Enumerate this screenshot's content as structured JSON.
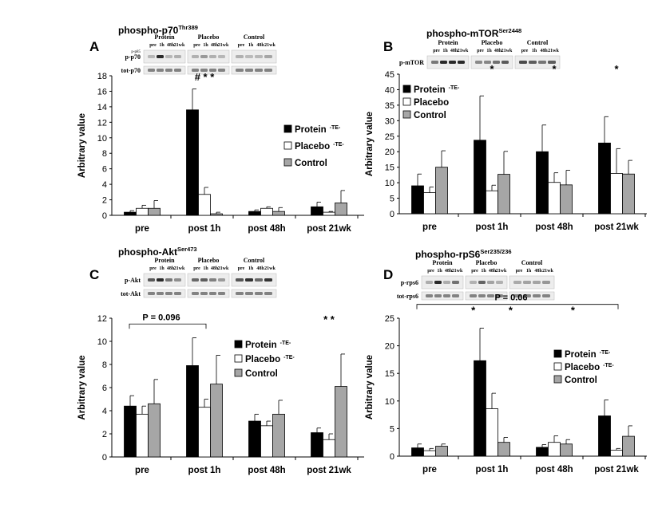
{
  "colors": {
    "protein": "#000000",
    "placebo": "#ffffff",
    "control": "#a6a6a6",
    "blot_bg": "#ededed",
    "blot_band": "#2a2a2a"
  },
  "legend_names": [
    "Protein",
    "Placebo",
    "Control"
  ],
  "categories": [
    "pre",
    "post 1h",
    "post 48h",
    "post 21wk"
  ],
  "y_axis_label": "Arbitrary value",
  "chart_data": [
    {
      "type": "bar",
      "letter": "A",
      "title": "phospho-p70",
      "title_sup": "Thr389",
      "ylabel": "Arbitrary value",
      "ylim": [
        0,
        18
      ],
      "yticks": [
        0,
        2,
        4,
        6,
        8,
        10,
        12,
        14,
        16,
        18
      ],
      "categories": [
        "pre",
        "post 1h",
        "post 48h",
        "post 21wk"
      ],
      "series": [
        {
          "name": "Protein",
          "sup": "-TE-",
          "values": [
            0.4,
            13.6,
            0.5,
            1.1
          ],
          "errors": [
            0.2,
            2.7,
            0.2,
            0.6
          ]
        },
        {
          "name": "Placebo",
          "sup": "-TE-",
          "values": [
            0.9,
            2.7,
            0.9,
            0.4
          ],
          "errors": [
            0.4,
            0.9,
            0.2,
            0.1
          ]
        },
        {
          "name": "Control",
          "sup": "",
          "values": [
            0.9,
            0.2,
            0.5,
            1.6
          ],
          "errors": [
            1.0,
            0.2,
            0.5,
            1.6
          ]
        }
      ],
      "legend_position": "right",
      "annotations": [
        {
          "text": "# * *",
          "category": 1,
          "y": 17.4
        }
      ],
      "blot": {
        "groups": [
          "Protein",
          "Placebo",
          "Control"
        ],
        "lanes": [
          "pre",
          "1h",
          "48h",
          "21wk"
        ],
        "rows": [
          "p-p70",
          "tot-p70"
        ],
        "small_label": "p-p85"
      }
    },
    {
      "type": "bar",
      "letter": "B",
      "title": "phospho-mTOR",
      "title_sup": "Ser2448",
      "ylabel": "Arbitrary value",
      "ylim": [
        0,
        45
      ],
      "yticks": [
        0,
        5,
        10,
        15,
        20,
        25,
        30,
        35,
        40,
        45
      ],
      "categories": [
        "pre",
        "post 1h",
        "post 48h",
        "post 21wk"
      ],
      "series": [
        {
          "name": "Protein",
          "sup": "-TE-",
          "values": [
            9.0,
            23.7,
            20.0,
            22.8
          ],
          "errors": [
            3.8,
            14.3,
            8.6,
            8.5
          ]
        },
        {
          "name": "Placebo",
          "sup": "",
          "values": [
            6.8,
            7.4,
            10.1,
            13.0
          ],
          "errors": [
            1.8,
            1.8,
            3.1,
            8.0
          ]
        },
        {
          "name": "Control",
          "sup": "",
          "values": [
            15.0,
            12.7,
            9.3,
            12.8
          ],
          "errors": [
            5.3,
            7.4,
            4.7,
            4.4
          ]
        }
      ],
      "legend_position": "top-left",
      "annotations": [
        {
          "text": "*",
          "category": 1,
          "y": 45.5
        },
        {
          "text": "*",
          "category": 2,
          "y": 45.5
        },
        {
          "text": "*",
          "category": 3,
          "y": 45.5
        }
      ],
      "blot": {
        "groups": [
          "Protein",
          "Placebo",
          "Control"
        ],
        "lanes": [
          "pre",
          "1h",
          "48h",
          "21wk"
        ],
        "rows": [
          "p-mTOR"
        ],
        "small_label": ""
      }
    },
    {
      "type": "bar",
      "letter": "C",
      "title": "phospho-Akt",
      "title_sup": "Ser473",
      "ylabel": "Arbitrary value",
      "ylim": [
        0,
        12
      ],
      "yticks": [
        0,
        2,
        4,
        6,
        8,
        10,
        12
      ],
      "categories": [
        "pre",
        "post 1h",
        "post 48h",
        "post 21wk"
      ],
      "series": [
        {
          "name": "Protein",
          "sup": "-TE-",
          "values": [
            4.4,
            7.9,
            3.1,
            2.1
          ],
          "errors": [
            0.9,
            2.4,
            0.6,
            0.4
          ]
        },
        {
          "name": "Placebo",
          "sup": "-TE-",
          "values": [
            3.7,
            4.3,
            2.7,
            1.5
          ],
          "errors": [
            0.7,
            0.7,
            0.4,
            0.5
          ]
        },
        {
          "name": "Control",
          "sup": "",
          "values": [
            4.6,
            6.3,
            3.7,
            6.1
          ],
          "errors": [
            2.1,
            2.5,
            1.2,
            2.8
          ]
        }
      ],
      "legend_position": "right",
      "annotations": [
        {
          "text": "*  *",
          "category": 3,
          "y": 11.6
        }
      ],
      "bracket": {
        "label": "P = 0.096",
        "from_category": 0,
        "to_category": 1,
        "y": 11.5
      },
      "blot": {
        "groups": [
          "Protein",
          "Placebo",
          "Control"
        ],
        "lanes": [
          "pre",
          "1h",
          "48h",
          "21wk"
        ],
        "rows": [
          "p-Akt",
          "tot-Akt"
        ],
        "small_label": ""
      }
    },
    {
      "type": "bar",
      "letter": "D",
      "title": "phospho-rpS6",
      "title_sup": "Ser235/236",
      "ylabel": "Arbitrary value",
      "ylim": [
        0,
        25
      ],
      "yticks": [
        0,
        5,
        10,
        15,
        20,
        25
      ],
      "categories": [
        "pre",
        "post 1h",
        "post 48h",
        "post 21wk"
      ],
      "series": [
        {
          "name": "Protein",
          "sup": "-TE-",
          "values": [
            1.5,
            17.3,
            1.6,
            7.3
          ],
          "errors": [
            0.7,
            5.9,
            0.5,
            2.9
          ]
        },
        {
          "name": "Placebo",
          "sup": "-TE-",
          "values": [
            1.0,
            8.6,
            2.5,
            1.1
          ],
          "errors": [
            0.4,
            2.8,
            1.2,
            0.3
          ]
        },
        {
          "name": "Control",
          "sup": "",
          "values": [
            1.8,
            2.5,
            2.2,
            3.6
          ],
          "errors": [
            0.4,
            0.9,
            0.8,
            1.9
          ]
        }
      ],
      "legend_position": "right",
      "annotations": [
        {
          "text": "*",
          "category": 1,
          "offset": -0.3,
          "y": 25.8
        },
        {
          "text": "*",
          "category": 1,
          "offset": 0.3,
          "y": 25.8
        },
        {
          "text": "*",
          "category": 2,
          "offset": 0.3,
          "y": 25.8
        }
      ],
      "bracket": {
        "label": "P = 0.06",
        "from_category": 0,
        "to_category": 3,
        "y": 27.5
      },
      "blot": {
        "groups": [
          "Protein",
          "Placebo",
          "Control"
        ],
        "lanes": [
          "pre",
          "1h",
          "48h",
          "21wk"
        ],
        "rows": [
          "p-rps6",
          "tot-rps6"
        ],
        "small_label": ""
      }
    }
  ]
}
